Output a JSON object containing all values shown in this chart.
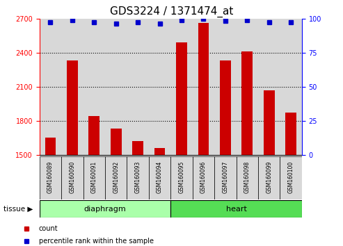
{
  "title": "GDS3224 / 1371474_at",
  "samples": [
    "GSM160089",
    "GSM160090",
    "GSM160091",
    "GSM160092",
    "GSM160093",
    "GSM160094",
    "GSM160095",
    "GSM160096",
    "GSM160097",
    "GSM160098",
    "GSM160099",
    "GSM160100"
  ],
  "counts": [
    1650,
    2330,
    1840,
    1730,
    1620,
    1560,
    2490,
    2660,
    2330,
    2410,
    2070,
    1870
  ],
  "percentile_ranks": [
    97,
    99,
    97,
    96,
    97,
    96,
    99,
    100,
    98,
    99,
    97,
    97
  ],
  "ylim_left": [
    1500,
    2700
  ],
  "ylim_right": [
    0,
    100
  ],
  "yticks_left": [
    1500,
    1800,
    2100,
    2400,
    2700
  ],
  "yticks_right": [
    0,
    25,
    50,
    75,
    100
  ],
  "groups": [
    {
      "label": "diaphragm",
      "start": 0,
      "end": 6,
      "color": "#aaffaa"
    },
    {
      "label": "heart",
      "start": 6,
      "end": 12,
      "color": "#55dd55"
    }
  ],
  "bar_color": "#cc0000",
  "dot_color": "#0000cc",
  "tissue_label": "tissue",
  "legend_items": [
    {
      "label": "count",
      "color": "#cc0000"
    },
    {
      "label": "percentile rank within the sample",
      "color": "#0000cc"
    }
  ],
  "background_color": "#ffffff",
  "bar_bg_color": "#d8d8d8",
  "title_fontsize": 11,
  "tick_fontsize": 7,
  "label_fontsize": 8,
  "sample_fontsize": 5.5
}
